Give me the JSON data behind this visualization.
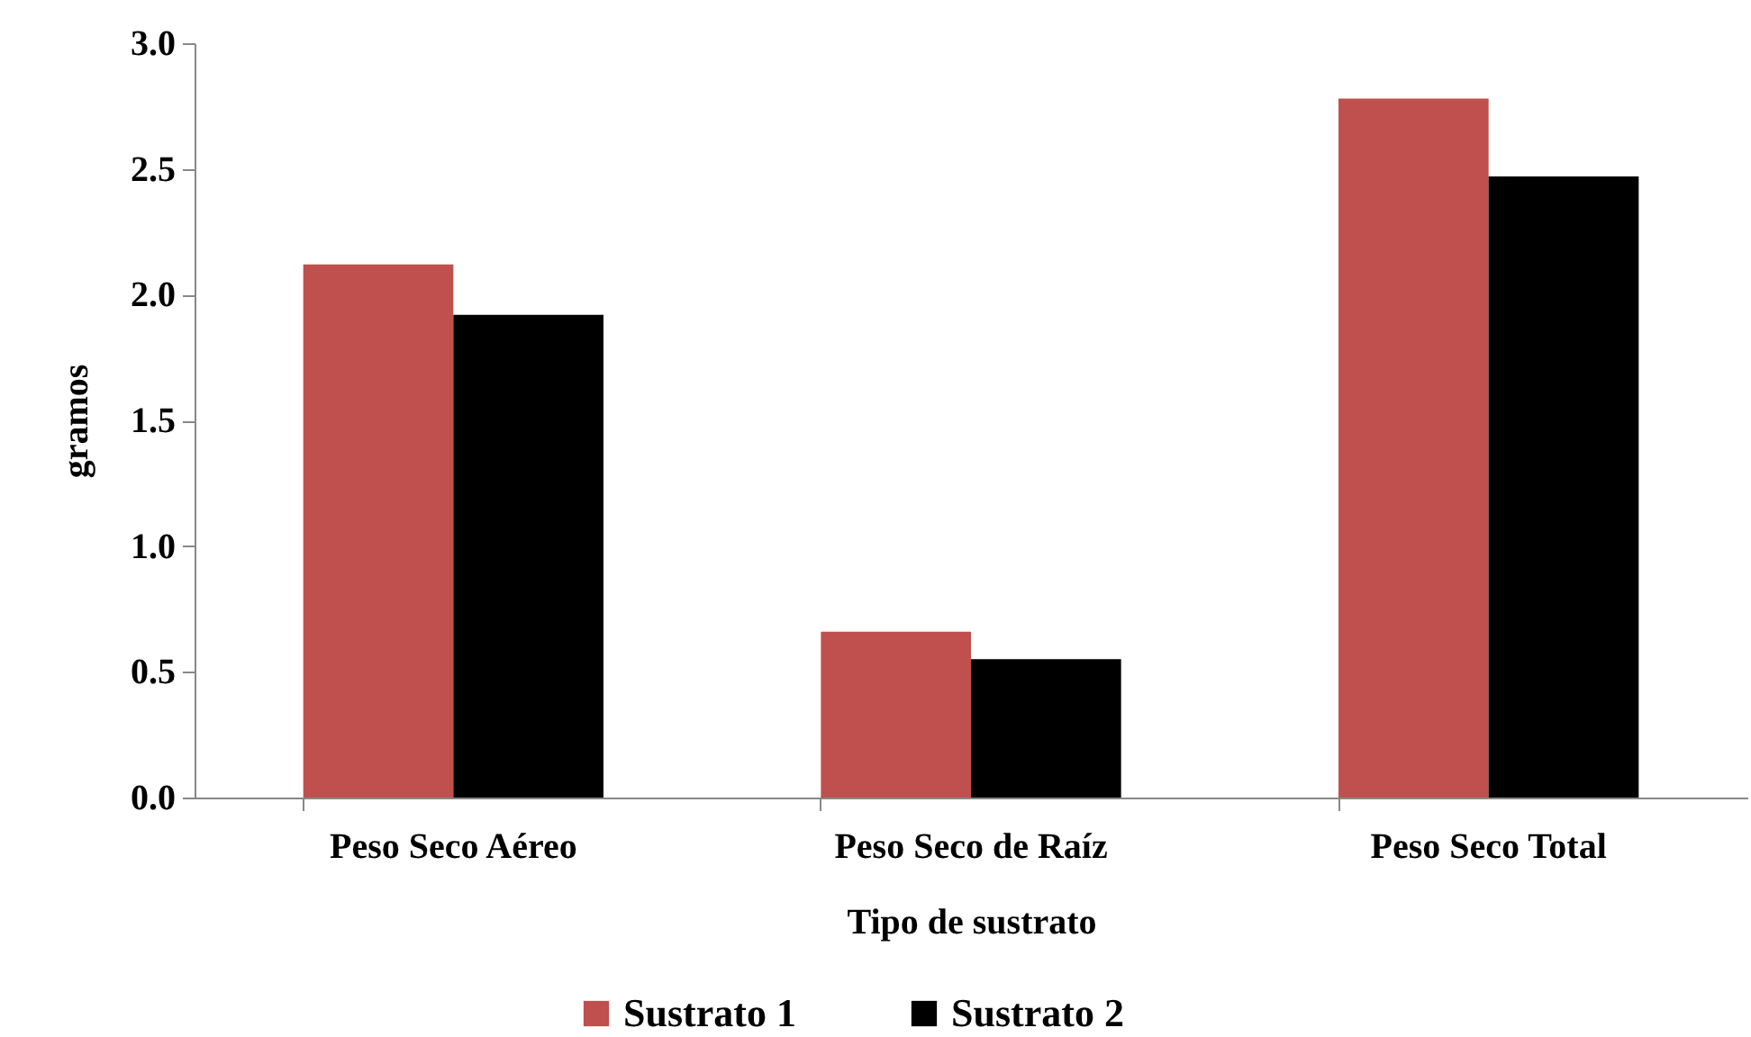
{
  "chart_data": {
    "type": "bar",
    "xlabel": "Tipo de sustrato",
    "ylabel": "gramos",
    "categories": [
      "Peso Seco Aéreo",
      "Peso Seco de Raíz",
      "Peso Seco Total"
    ],
    "series": [
      {
        "name": "Sustrato 1",
        "color": "#c0504d",
        "values": [
          2.12,
          0.66,
          2.78
        ]
      },
      {
        "name": "Sustrato 2",
        "color": "#000000",
        "values": [
          1.92,
          0.55,
          2.47
        ]
      }
    ],
    "ylim": [
      0,
      3
    ],
    "yticks": [
      {
        "value": 0,
        "label": "0.0"
      },
      {
        "value": 0.5,
        "label": "0.5"
      },
      {
        "value": 1,
        "label": "1.0"
      },
      {
        "value": 1.5,
        "label": "1.5"
      },
      {
        "value": 2,
        "label": "2.0"
      },
      {
        "value": 2.5,
        "label": "2.5"
      },
      {
        "value": 3,
        "label": "3.0"
      }
    ],
    "grid": false,
    "legend": "bottom"
  }
}
